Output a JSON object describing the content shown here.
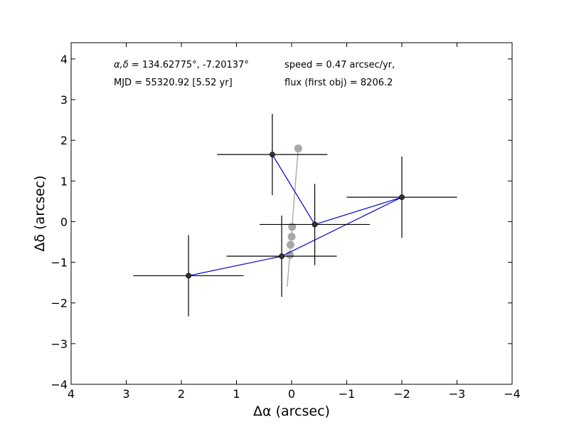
{
  "chart_data": {
    "type": "scatter",
    "xlabel": "Δα (arcsec)",
    "ylabel": "Δδ (arcsec)",
    "xlim": [
      4,
      -4
    ],
    "ylim": [
      -4,
      4.4
    ],
    "x_inverted": true,
    "grid": false,
    "xticks": [
      4,
      3,
      2,
      1,
      0,
      -1,
      -2,
      -3,
      -4
    ],
    "yticks": [
      -4,
      -3,
      -2,
      -1,
      0,
      1,
      2,
      3,
      4
    ],
    "xtick_labels": [
      "4",
      "3",
      "2",
      "1",
      "0",
      "−1",
      "−2",
      "−3",
      "−4"
    ],
    "ytick_labels": [
      "−4",
      "−3",
      "−2",
      "−1",
      "0",
      "1",
      "2",
      "3",
      "4"
    ],
    "annotations": {
      "coords_symbol": "α,δ",
      "coords_value": " = 134.62775°, -7.20137°",
      "mjd": "MJD = 55320.92 [5.52 yr]",
      "speed": "speed = 0.47 arcsec/yr,",
      "flux": "flux (first obj) = 8206.2"
    },
    "series": [
      {
        "type": "errorbar",
        "color": "#000000",
        "marker_color": "#333333",
        "line_color": "#0000cc",
        "points": [
          {
            "x": 1.87,
            "y": -1.33,
            "xerr": 1.0,
            "yerr": 1.0
          },
          {
            "x": 0.18,
            "y": -0.85,
            "xerr": 1.0,
            "yerr": 1.0
          },
          {
            "x": -2.0,
            "y": 0.6,
            "xerr": 1.0,
            "yerr": 1.0
          },
          {
            "x": -0.42,
            "y": -0.07,
            "xerr": 1.0,
            "yerr": 1.0
          },
          {
            "x": 0.35,
            "y": 1.65,
            "xerr": 1.0,
            "yerr": 1.0
          }
        ]
      },
      {
        "type": "line+markers",
        "color": "#a8a8a8",
        "line_points": [
          {
            "x": 0.08,
            "y": -1.6
          },
          {
            "x": -0.12,
            "y": 1.8
          }
        ],
        "points": [
          {
            "x": 0.03,
            "y": -0.82
          },
          {
            "x": 0.02,
            "y": -0.57
          },
          {
            "x": 0.0,
            "y": -0.37
          },
          {
            "x": -0.01,
            "y": -0.13
          },
          {
            "x": -0.12,
            "y": 1.8
          }
        ]
      }
    ]
  }
}
